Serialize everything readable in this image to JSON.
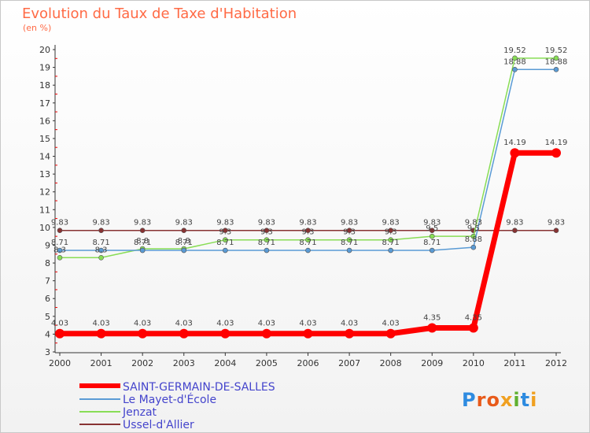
{
  "chart_data": {
    "type": "line",
    "title": "Evolution du Taux de Taxe d'Habitation",
    "unit_label": "(en %)",
    "x": [
      "2000",
      "2001",
      "2002",
      "2003",
      "2004",
      "2005",
      "2006",
      "2007",
      "2008",
      "2009",
      "2010",
      "2011",
      "2012"
    ],
    "ylim": [
      3,
      20
    ],
    "yticks": [
      3,
      4,
      5,
      6,
      7,
      8,
      9,
      10,
      11,
      12,
      13,
      14,
      15,
      16,
      17,
      18,
      19,
      20
    ],
    "grid": false,
    "legend_position": "bottom-left",
    "series": [
      {
        "name": "SAINT-GERMAIN-DE-SALLES",
        "color": "#ff0000",
        "values": [
          4.03,
          4.03,
          4.03,
          4.03,
          4.03,
          4.03,
          4.03,
          4.03,
          4.03,
          4.35,
          4.35,
          14.19,
          14.19
        ],
        "labels": [
          "4.03",
          "4.03",
          "4.03",
          "4.03",
          "4.03",
          "4.03",
          "4.03",
          "4.03",
          "4.03",
          "4.35",
          "4.35",
          "14.19",
          "14.19"
        ]
      },
      {
        "name": "Le Mayet-d'École",
        "color": "#5a9bd5",
        "values": [
          8.71,
          8.71,
          8.71,
          8.71,
          8.71,
          8.71,
          8.71,
          8.71,
          8.71,
          8.71,
          8.88,
          18.88,
          18.88
        ],
        "labels": [
          "8.71",
          "8.71",
          "8.71",
          "8.71",
          "8.71",
          "8.71",
          "8.71",
          "8.71",
          "8.71",
          "8.71",
          "8.88",
          "18.88",
          "18.88"
        ]
      },
      {
        "name": "Jenzat",
        "color": "#88dd55",
        "values": [
          8.3,
          8.3,
          8.8,
          8.8,
          9.3,
          9.3,
          9.3,
          9.3,
          9.3,
          9.5,
          9.5,
          19.52,
          19.52
        ],
        "labels": [
          "8.3",
          "8.3",
          "8.8",
          "8.8",
          "9.3",
          "9.3",
          "9.3",
          "9.3",
          "9.3",
          "9.5",
          "9.5",
          "19.52",
          "19.52"
        ]
      },
      {
        "name": "Ussel-d'Allier",
        "color": "#883333",
        "values": [
          9.83,
          9.83,
          9.83,
          9.83,
          9.83,
          9.83,
          9.83,
          9.83,
          9.83,
          9.83,
          9.83,
          9.83,
          9.83
        ],
        "labels": [
          "9.83",
          "9.83",
          "9.83",
          "9.83",
          "9.83",
          "9.83",
          "9.83",
          "9.83",
          "9.83",
          "9.83",
          "9.83",
          "9.83",
          "9.83"
        ]
      }
    ]
  },
  "logo": {
    "text": "Proxiti",
    "colors": [
      "#2e8be0",
      "#e85a1a",
      "#e85a1a",
      "#f0a020",
      "#60b030",
      "#2e8be0",
      "#f0a020"
    ]
  }
}
